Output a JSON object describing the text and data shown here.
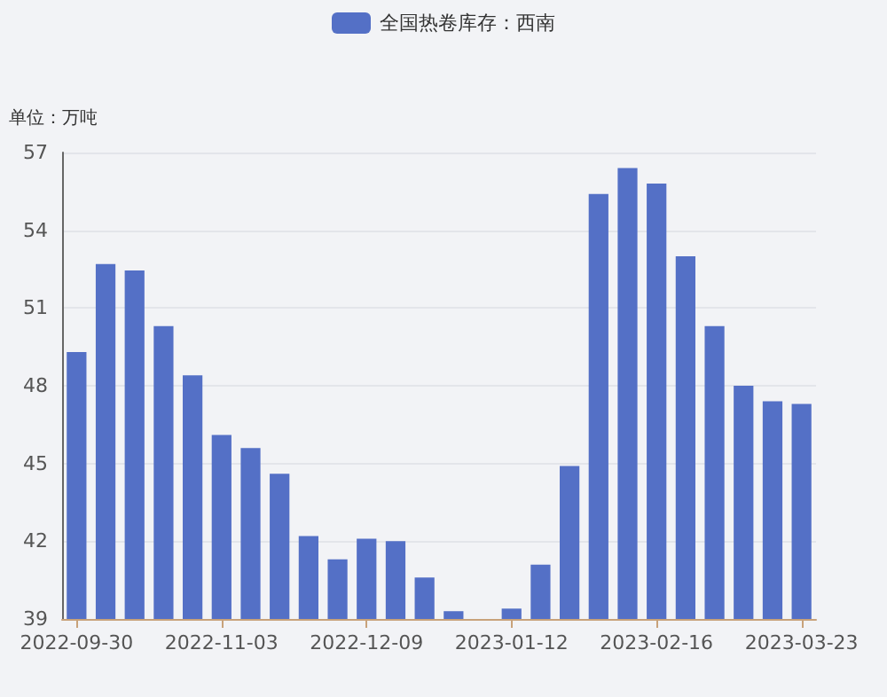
{
  "chart_data": {
    "type": "bar",
    "categories": [
      "2022-09-30",
      null,
      null,
      null,
      null,
      "2022-11-03",
      null,
      null,
      null,
      null,
      "2022-12-09",
      null,
      null,
      null,
      null,
      "2023-01-12",
      null,
      null,
      null,
      null,
      "2023-02-16",
      null,
      null,
      null,
      null,
      "2023-03-23"
    ],
    "series": [
      {
        "name": "全国热卷库存：西南",
        "color": "#5470c6",
        "values": [
          49.3,
          52.7,
          52.45,
          50.3,
          48.4,
          46.1,
          45.6,
          44.6,
          42.2,
          41.3,
          42.1,
          42.0,
          40.6,
          39.3,
          39,
          39.4,
          41.1,
          44.9,
          55.4,
          56.4,
          55.8,
          53.0,
          50.3,
          48.0,
          47.4,
          47.3
        ]
      }
    ],
    "ylabel": "单位：万吨",
    "ylim": [
      39,
      57
    ],
    "yticks": [
      39,
      42,
      45,
      48,
      51,
      54,
      57
    ],
    "grid": "y",
    "legend": "top"
  }
}
